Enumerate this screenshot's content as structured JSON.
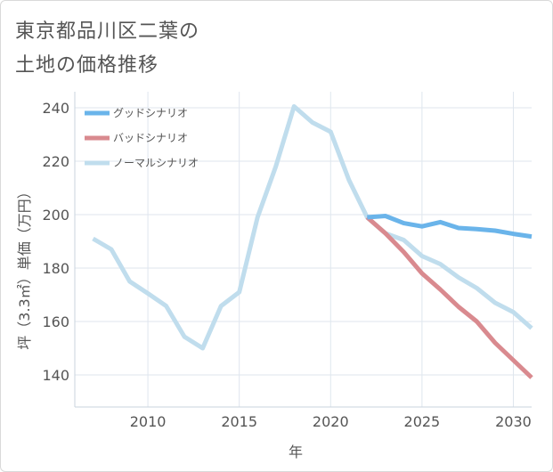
{
  "title_lines": [
    "東京都品川区二葉の",
    "土地の価格推移"
  ],
  "chart_data": {
    "type": "line",
    "xlabel": "年",
    "ylabel": "坪（3.3㎡）単価（万円）",
    "xlim": [
      2006,
      2031
    ],
    "ylim": [
      128,
      246
    ],
    "x_ticks": [
      2010,
      2015,
      2020,
      2025,
      2030
    ],
    "y_ticks": [
      140,
      160,
      180,
      200,
      220,
      240
    ],
    "grid": true,
    "legend_position": "top-left",
    "series": [
      {
        "name": "グッドシナリオ",
        "color": "#6ab4ea",
        "x": [
          2022,
          2023,
          2024,
          2025,
          2026,
          2027,
          2028,
          2029,
          2030,
          2031
        ],
        "y": [
          199,
          199.5,
          196.8,
          195.6,
          197.2,
          195,
          194.6,
          194,
          192.8,
          191.8
        ]
      },
      {
        "name": "バッドシナリオ",
        "color": "#d98a8f",
        "x": [
          2022,
          2023,
          2024,
          2025,
          2026,
          2027,
          2028,
          2029,
          2030,
          2031
        ],
        "y": [
          199,
          193,
          186,
          178,
          172,
          165.5,
          160,
          152,
          145.5,
          139
        ]
      },
      {
        "name": "ノーマルシナリオ",
        "color": "#c0dded",
        "x": [
          2007,
          2008,
          2009,
          2010,
          2011,
          2012,
          2013,
          2014,
          2015,
          2016,
          2017,
          2018,
          2019,
          2020,
          2021,
          2022,
          2023,
          2024,
          2025,
          2026,
          2027,
          2028,
          2029,
          2030,
          2031
        ],
        "y": [
          191,
          187,
          175,
          170.5,
          165.8,
          154.3,
          150,
          165.8,
          171,
          199,
          218,
          240.5,
          234.5,
          231,
          213,
          199,
          193,
          190.5,
          184.5,
          181.5,
          176.5,
          172.5,
          167,
          163.5,
          157.5
        ]
      }
    ]
  }
}
